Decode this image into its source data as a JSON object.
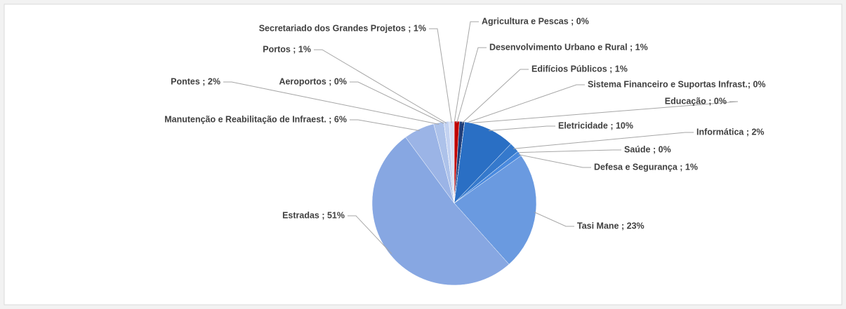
{
  "chart_data": {
    "type": "pie",
    "categories": [
      "Agricultura e Pescas",
      "Desenvolvimento Urbano e Rural",
      "Edifícios Públicos",
      "Sistema Financeiro e Suportas Infrast.",
      "Educação",
      "Eletricidade",
      "Informática",
      "Saúde",
      "Defesa e Segurança",
      "Tasi Mane",
      "Estradas",
      "Manutenção e Reabilitação de Infraest.",
      "Pontes",
      "Aeroportos",
      "Portos",
      "Secretariado dos Grandes Projetos"
    ],
    "values": [
      0,
      1,
      1,
      0,
      0,
      10,
      2,
      0,
      1,
      23,
      51,
      6,
      2,
      0,
      1,
      1
    ],
    "value_labels": [
      "Agricultura e Pescas ; 0%",
      "Desenvolvimento Urbano e Rural ; 1%",
      "Edifícios Públicos ; 1%",
      "Sistema Financeiro e Suportas Infrast.; 0%",
      "Educação ; 0%",
      "Eletricidade ; 10%",
      "Informática ; 2%",
      "Saúde ; 0%",
      "Defesa e Segurança ; 1%",
      "Tasi Mane ; 23%",
      "Estradas ; 51%",
      "Manutenção e Reabilitação de Infraest. ; 6%",
      "Pontes ; 2%",
      "Aeroportos ; 0%",
      "Portos ; 1%",
      "Secretariado dos Grandes Projetos ; 1%"
    ],
    "colors": [
      "#1f3864",
      "#c00000",
      "#203f7a",
      "#2c5aa0",
      "#2f64b4",
      "#2a6fc4",
      "#3579cc",
      "#3f82d4",
      "#4a8ade",
      "#6a9ae0",
      "#87a7e2",
      "#9bb4e6",
      "#adc2ea",
      "#b8caee",
      "#c3d2f1",
      "#d2ddf4"
    ]
  }
}
